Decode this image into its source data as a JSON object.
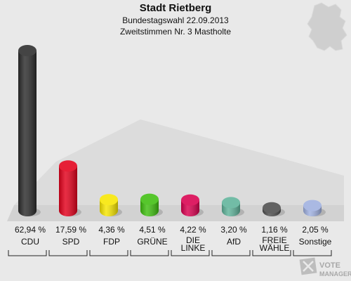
{
  "header": {
    "title": "Stadt Rietberg",
    "subtitle1": "Bundestagswahl 22.09.2013",
    "subtitle2": "Zweitstimmen Nr. 3 Mastholte"
  },
  "logo": {
    "line1": "VOTE",
    "line2": "MANAGER"
  },
  "chart_data": {
    "type": "bar",
    "categories": [
      "CDU",
      "SPD",
      "FDP",
      "GRÜNE",
      "DIE LINKE",
      "AfD",
      "FREIE WÄHLER",
      "Sonstige"
    ],
    "category_lines": [
      [
        "CDU"
      ],
      [
        "SPD"
      ],
      [
        "FDP"
      ],
      [
        "GRÜNE"
      ],
      [
        "DIE",
        "LINKE"
      ],
      [
        "AfD"
      ],
      [
        "FREIE",
        "WÄHLE"
      ],
      [
        "Sonstige"
      ]
    ],
    "values": [
      62.94,
      17.59,
      4.36,
      4.51,
      4.22,
      3.2,
      1.16,
      2.05
    ],
    "value_labels": [
      "62,94 %",
      "17,59 %",
      "4,36 %",
      "4,51 %",
      "4,22 %",
      "3,20 %",
      "1,16 %",
      "2,05 %"
    ],
    "colors": [
      "#2b2b2b",
      "#e3001b",
      "#f7e600",
      "#3fbf0f",
      "#d9004f",
      "#5fb39a",
      "#4d4d4d",
      "#9fb0e0"
    ],
    "ylim": [
      0,
      62.94
    ],
    "grid": false,
    "legend": "none"
  }
}
